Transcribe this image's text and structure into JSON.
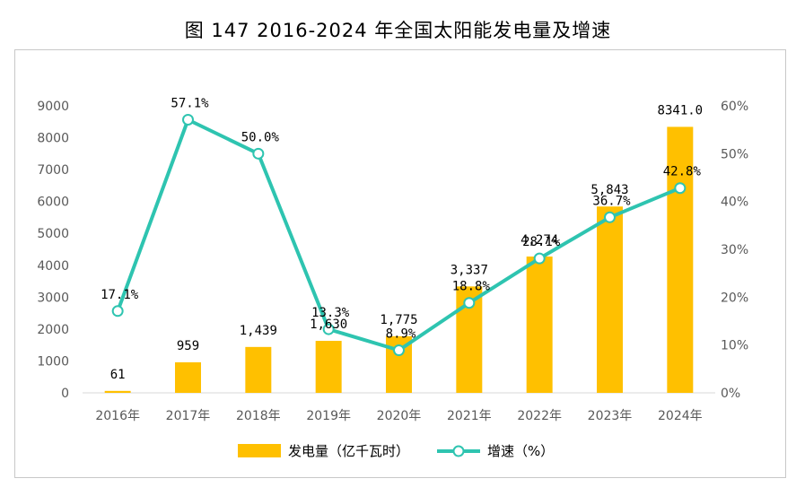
{
  "title": "图 147 2016-2024 年全国太阳能发电量及增速",
  "chart_data": {
    "type": "bar",
    "categories": [
      "2016年",
      "2017年",
      "2018年",
      "2019年",
      "2020年",
      "2021年",
      "2022年",
      "2023年",
      "2024年"
    ],
    "series": [
      {
        "name": "发电量（亿千瓦时）",
        "type": "bar",
        "axis": "left",
        "color": "#FFC000",
        "values": [
          61,
          959,
          1439,
          1630,
          1775,
          3337,
          4274,
          5843,
          8341.0
        ],
        "labels": [
          "61",
          "959",
          "1,439",
          "1,630",
          "1,775",
          "3,337",
          "4,274",
          "5,843",
          "8341.0"
        ]
      },
      {
        "name": "增速（%）",
        "type": "line",
        "axis": "right",
        "color": "#2EC4B0",
        "values": [
          17.1,
          57.1,
          50.0,
          13.3,
          8.9,
          18.8,
          28.1,
          36.7,
          42.8
        ],
        "labels": [
          "17.1%",
          "57.1%",
          "50.0%",
          "13.3%",
          "8.9%",
          "18.8%",
          "28.1%",
          "36.7%",
          "42.8%"
        ]
      }
    ],
    "y_left": {
      "lim": [
        0,
        9000
      ],
      "ticks": [
        0,
        1000,
        2000,
        3000,
        4000,
        5000,
        6000,
        7000,
        8000,
        9000
      ]
    },
    "y_right": {
      "lim": [
        0,
        60
      ],
      "ticks": [
        "0%",
        "10%",
        "20%",
        "30%",
        "40%",
        "50%",
        "60%"
      ]
    },
    "grid": false,
    "legend": "bottom"
  }
}
